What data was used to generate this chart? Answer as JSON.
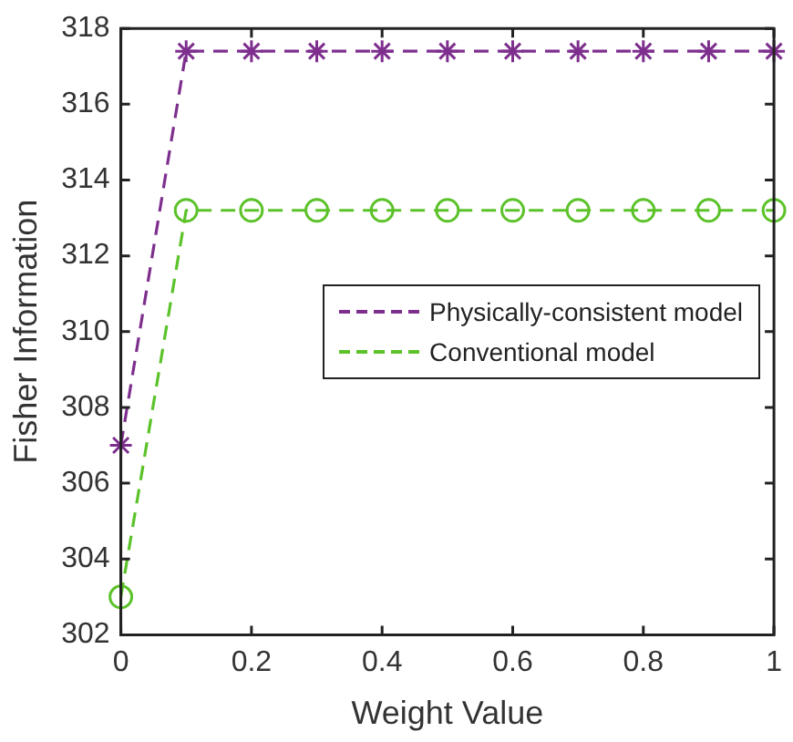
{
  "chart_data": {
    "type": "line",
    "xlabel": "Weight Value",
    "ylabel": "Fisher Information",
    "x": [
      0,
      0.1,
      0.2,
      0.3,
      0.4,
      0.5,
      0.6,
      0.7,
      0.8,
      0.9,
      1
    ],
    "series": [
      {
        "name": "Physically-consistent model",
        "color": "#7e2f8e",
        "marker": "cross",
        "values": [
          307,
          317.4,
          317.4,
          317.4,
          317.4,
          317.4,
          317.4,
          317.4,
          317.4,
          317.4,
          317.4
        ]
      },
      {
        "name": "Conventional model",
        "color": "#5cc22a",
        "marker": "circle",
        "values": [
          303,
          313.2,
          313.2,
          313.2,
          313.2,
          313.2,
          313.2,
          313.2,
          313.2,
          313.2,
          313.2
        ]
      }
    ],
    "xlim": [
      0,
      1
    ],
    "xticks": [
      0,
      0.2,
      0.4,
      0.6,
      0.8,
      1
    ],
    "ylim": [
      302,
      318
    ],
    "yticks": [
      302,
      304,
      306,
      308,
      310,
      312,
      314,
      316,
      318
    ],
    "grid": false,
    "legend": "right",
    "line_style": "dashed"
  }
}
